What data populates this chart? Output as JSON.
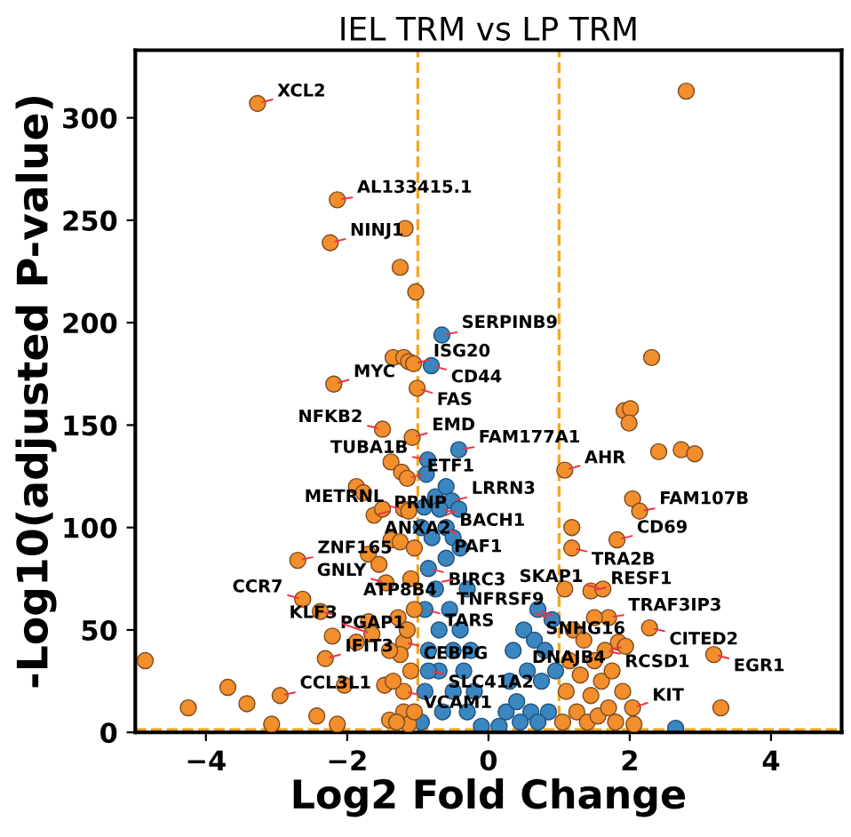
{
  "chart_data": {
    "type": "scatter",
    "title": "IEL TRM vs LP TRM",
    "xlabel": "Log2 Fold Change",
    "ylabel": "-Log10(adjusted P-value)",
    "xlim": [
      -5,
      5
    ],
    "ylim": [
      0,
      333
    ],
    "xticks": [
      -4,
      -2,
      0,
      2,
      4
    ],
    "yticks": [
      0,
      50,
      100,
      150,
      200,
      250,
      300
    ],
    "grid": false,
    "legend": false,
    "marker": "circle",
    "ref_lines": [
      {
        "axis": "x",
        "value": -1,
        "color": "#f5a623",
        "line_style": "dashed"
      },
      {
        "axis": "x",
        "value": 1,
        "color": "#f5a623",
        "line_style": "dashed"
      },
      {
        "axis": "y",
        "value": 1.3,
        "color": "#f5a623",
        "line_style": "dashed"
      }
    ],
    "series": [
      {
        "color": "#3a86c0",
        "x": [
          -0.95,
          -0.9,
          -0.85,
          -0.9,
          -0.85,
          -0.8,
          -0.75,
          -0.7,
          -0.7,
          -0.65,
          -0.6,
          -0.55,
          -0.5,
          -0.5,
          -0.4,
          -0.35,
          -0.3,
          -0.25,
          -0.2,
          -0.6,
          -0.5,
          -0.4,
          -0.3,
          -0.95,
          -0.75,
          -0.6,
          -0.85,
          -0.1,
          -0.66,
          -0.81,
          -0.86,
          -0.88,
          -0.42,
          -0.52,
          -0.69,
          -0.42,
          -0.91,
          0.15,
          0.25,
          0.3,
          0.35,
          0.4,
          0.5,
          0.55,
          0.6,
          0.65,
          0.7,
          0.75,
          0.8,
          0.85,
          0.9,
          0.95,
          0.45,
          0.7,
          2.65
        ],
        "values": [
          5,
          20,
          40,
          60,
          80,
          95,
          70,
          50,
          30,
          10,
          85,
          60,
          40,
          20,
          50,
          30,
          10,
          40,
          20,
          100,
          95,
          90,
          70,
          100,
          115,
          120,
          30,
          3,
          194,
          179,
          133,
          126,
          138,
          113,
          109,
          109,
          110,
          3,
          10,
          25,
          40,
          15,
          50,
          30,
          10,
          45,
          60,
          25,
          40,
          10,
          55,
          30,
          5,
          5,
          2
        ]
      },
      {
        "color": "#f28e2b",
        "x": [
          -3.27,
          2.8,
          -2.14,
          -2.24,
          -1.18,
          -1.25,
          -1.03,
          -2.19,
          -1.35,
          -1.2,
          -1.13,
          -1.06,
          -1.01,
          -1.5,
          -1.08,
          -1.38,
          -1.23,
          -1.15,
          -1.87,
          -1.77,
          -1.62,
          -1.5,
          -1.2,
          -1.13,
          -1.38,
          -1.25,
          2.31,
          1.92,
          2.01,
          1.99,
          2.41,
          2.73,
          2.92,
          1.08,
          2.04,
          2.14,
          1.18,
          -4.86,
          -4.25,
          -3.69,
          -3.42,
          -3.07,
          -2.95,
          -2.7,
          -2.63,
          -2.38,
          -2.21,
          -2.43,
          -2.14,
          -2.04,
          -1.7,
          -1.55,
          -1.7,
          -1.65,
          -1.87,
          -1.45,
          -1.47,
          -1.4,
          -1.2,
          -1.13,
          -2.31,
          -1.28,
          -1.2,
          3.19,
          3.29,
          2.28,
          1.82,
          1.18,
          1.45,
          1.62,
          1.7,
          1.5,
          1.84,
          1.08,
          1.94,
          2.06,
          2.04,
          1.05,
          1.1,
          1.15,
          1.2,
          1.25,
          1.3,
          1.35,
          1.4,
          1.45,
          1.5,
          1.55,
          1.6,
          1.65,
          1.7,
          1.75,
          1.8,
          1.9,
          -1.05,
          -1.1,
          -1.15,
          -1.2,
          -1.25,
          -1.3,
          -1.35,
          -1.4,
          -1.05,
          -1.1,
          -1.05
        ],
        "values": [
          307,
          313,
          260,
          239,
          246,
          227,
          215,
          170,
          183,
          183,
          181,
          180,
          168,
          148,
          144,
          132,
          127,
          124,
          120,
          117,
          106,
          109,
          109,
          108,
          94,
          93,
          183,
          157,
          158,
          151,
          137,
          138,
          136,
          128,
          114,
          108,
          100,
          35,
          12,
          22,
          14,
          4,
          18,
          84,
          65,
          59,
          47,
          8,
          4,
          23,
          87,
          82,
          54,
          48,
          44,
          73,
          23,
          6,
          10,
          4,
          36,
          56,
          44,
          38,
          12,
          51,
          94,
          90,
          69,
          70,
          56,
          56,
          44,
          70,
          42,
          4,
          12,
          5,
          20,
          35,
          50,
          10,
          28,
          45,
          5,
          18,
          35,
          8,
          25,
          40,
          12,
          30,
          5,
          20,
          10,
          30,
          50,
          20,
          38,
          5,
          25,
          40,
          60,
          75,
          90
        ]
      }
    ],
    "annotations": [
      {
        "text": "XCL2",
        "x": -3.27,
        "y": 307
      },
      {
        "text": "AL133415.1",
        "x": -2.14,
        "y": 260
      },
      {
        "text": "NINJ1",
        "x": -2.24,
        "y": 239
      },
      {
        "text": "SERPINB9",
        "x": -0.66,
        "y": 194
      },
      {
        "text": "ISG20",
        "x": -1.06,
        "y": 180
      },
      {
        "text": "MYC",
        "x": -2.19,
        "y": 170
      },
      {
        "text": "CD44",
        "x": -0.81,
        "y": 179
      },
      {
        "text": "FAS",
        "x": -1.01,
        "y": 168
      },
      {
        "text": "NFKB2",
        "x": -1.5,
        "y": 148
      },
      {
        "text": "EMD",
        "x": -1.08,
        "y": 144
      },
      {
        "text": "FAM177A1",
        "x": -0.42,
        "y": 138
      },
      {
        "text": "TUBA1B",
        "x": -0.86,
        "y": 133
      },
      {
        "text": "ETF1",
        "x": -1.15,
        "y": 124
      },
      {
        "text": "LRRN3",
        "x": -0.52,
        "y": 113
      },
      {
        "text": "AHR",
        "x": 1.08,
        "y": 128
      },
      {
        "text": "PRNP",
        "x": -1.62,
        "y": 106
      },
      {
        "text": "BACH1",
        "x": -0.69,
        "y": 109
      },
      {
        "text": "ANXA2",
        "x": -0.42,
        "y": 109
      },
      {
        "text": "FAM107B",
        "x": 2.14,
        "y": 108
      },
      {
        "text": "CD69",
        "x": 1.82,
        "y": 94
      },
      {
        "text": "TRA2B",
        "x": 1.18,
        "y": 90
      },
      {
        "text": "METRNL",
        "x": -1.2,
        "y": 109
      },
      {
        "text": "PAF1",
        "x": -0.6,
        "y": 100
      },
      {
        "text": "RESF1",
        "x": 1.45,
        "y": 69
      },
      {
        "text": "SKAP1",
        "x": 1.62,
        "y": 70
      },
      {
        "text": "ZNF165",
        "x": -2.7,
        "y": 84
      },
      {
        "text": "BIRC3",
        "x": -0.85,
        "y": 80
      },
      {
        "text": "ATP8B4",
        "x": -0.45,
        "y": 75
      },
      {
        "text": "TRAF3IP3",
        "x": 1.7,
        "y": 56
      },
      {
        "text": "CCR7",
        "x": -2.63,
        "y": 65
      },
      {
        "text": "GNLY",
        "x": -1.45,
        "y": 73
      },
      {
        "text": "TARS",
        "x": -0.9,
        "y": 60
      },
      {
        "text": "SNHG16",
        "x": 0.7,
        "y": 60
      },
      {
        "text": "CITED2",
        "x": 2.28,
        "y": 51
      },
      {
        "text": "DNAJB4",
        "x": 1.94,
        "y": 42
      },
      {
        "text": "PGAP1",
        "x": -2.38,
        "y": 59
      },
      {
        "text": "CEBPG",
        "x": -1.2,
        "y": 44
      },
      {
        "text": "TNFRSF9",
        "x": 0.9,
        "y": 55
      },
      {
        "text": "EGR1",
        "x": 3.19,
        "y": 38
      },
      {
        "text": "RCSD1",
        "x": 1.65,
        "y": 40
      },
      {
        "text": "IFIT3",
        "x": -2.31,
        "y": 36
      },
      {
        "text": "KLF3",
        "x": -1.65,
        "y": 48
      },
      {
        "text": "SLC41A2",
        "x": -0.85,
        "y": 30
      },
      {
        "text": "CCL3L1",
        "x": -2.95,
        "y": 18
      },
      {
        "text": "VCAM1",
        "x": -1.2,
        "y": 20
      },
      {
        "text": "KIT",
        "x": 2.04,
        "y": 12
      }
    ]
  }
}
